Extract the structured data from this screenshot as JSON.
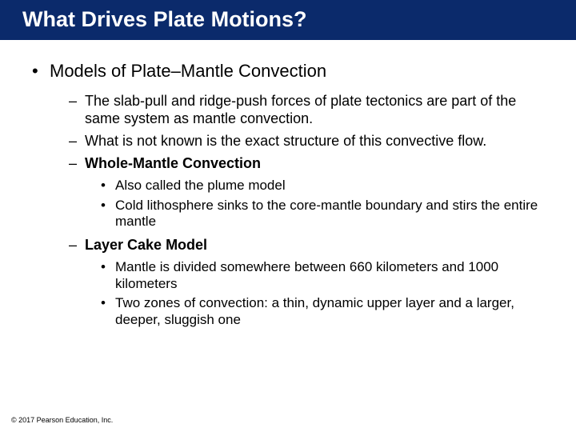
{
  "title": "What Drives Plate Motions?",
  "bullets": {
    "lvl1": "Models of Plate–Mantle Convection",
    "sub1": "The slab-pull and ridge-push forces of plate tectonics are part of the same system as mantle convection.",
    "sub2": "What is not known is the exact structure of this convective flow.",
    "sub3": "Whole-Mantle Convection",
    "sub3a": "Also called the plume model",
    "sub3b": "Cold lithosphere sinks to the core-mantle boundary and stirs the entire mantle",
    "sub4": "Layer Cake Model",
    "sub4a": "Mantle is divided somewhere between 660 kilometers and 1000 kilometers",
    "sub4b": "Two zones of convection: a thin, dynamic upper layer and a larger, deeper, sluggish one"
  },
  "copyright": "© 2017 Pearson Education, Inc.",
  "colors": {
    "title_bg": "#0b2a6b",
    "title_text": "#ffffff",
    "body_text": "#000000",
    "page_bg": "#ffffff"
  },
  "typography": {
    "title_fontsize": 27,
    "lvl1_fontsize": 22,
    "lvl2_fontsize": 18,
    "lvl3_fontsize": 17,
    "copyright_fontsize": 9,
    "font_family": "Arial"
  }
}
